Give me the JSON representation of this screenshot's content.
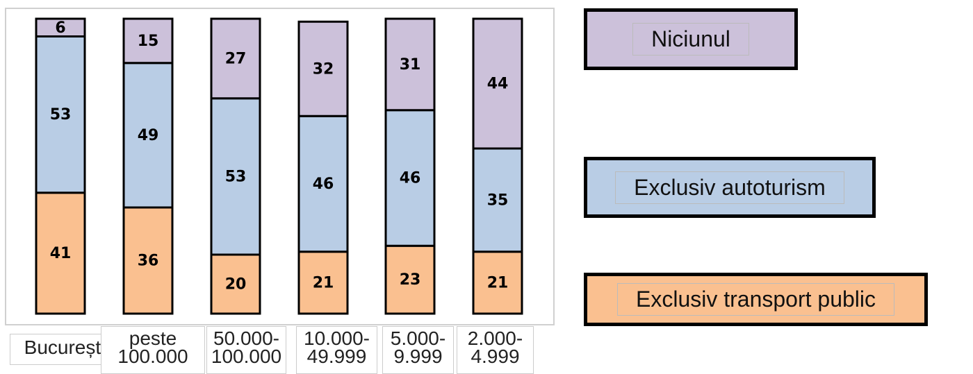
{
  "chart_data": {
    "type": "stacked-bar",
    "categories": [
      "București",
      "peste 100.000",
      "50.000-100.000",
      "10.000-49.999",
      "5.000-9.999",
      "2.000-4.999"
    ],
    "series": [
      {
        "name": "Exclusiv transport public",
        "color": "#fac090",
        "values": [
          41,
          36,
          20,
          21,
          23,
          21
        ]
      },
      {
        "name": "Exclusiv autoturism",
        "color": "#b9cde5",
        "values": [
          53,
          49,
          53,
          46,
          46,
          35
        ]
      },
      {
        "name": "Niciunul",
        "color": "#ccc1da",
        "values": [
          6,
          15,
          27,
          32,
          31,
          44
        ]
      }
    ],
    "ylim": [
      0,
      100
    ]
  }
}
